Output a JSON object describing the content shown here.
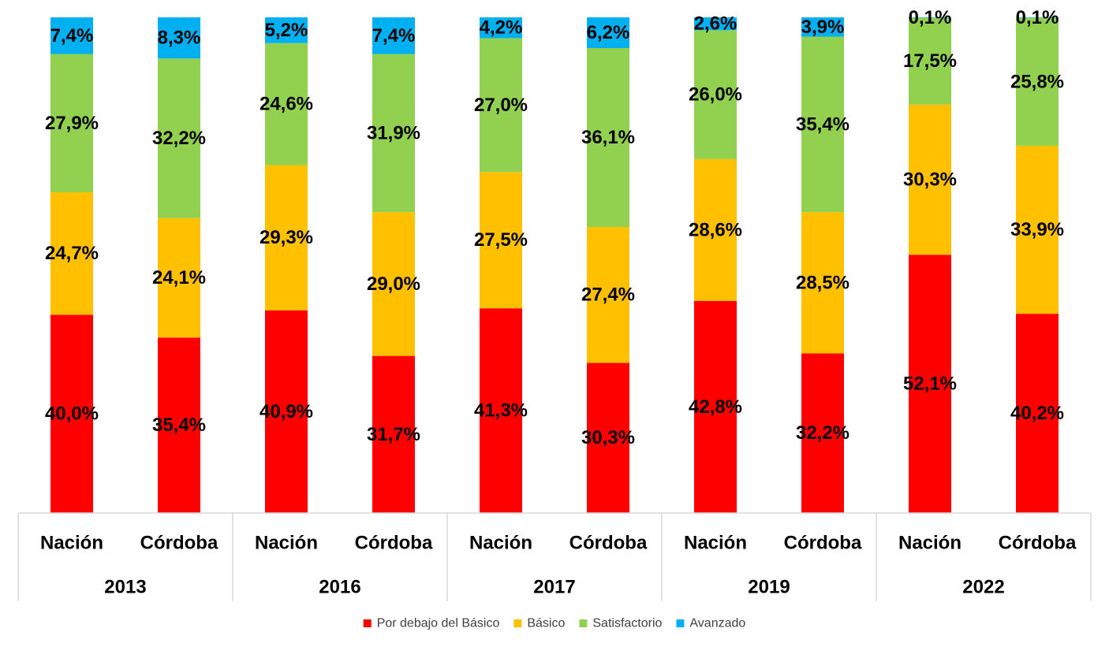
{
  "chart_data": {
    "type": "bar",
    "stacked": true,
    "percent_stacked": true,
    "groups": [
      {
        "year": "2013",
        "categories": [
          "Nación",
          "Córdoba"
        ]
      },
      {
        "year": "2016",
        "categories": [
          "Nación",
          "Córdoba"
        ]
      },
      {
        "year": "2017",
        "categories": [
          "Nación",
          "Córdoba"
        ]
      },
      {
        "year": "2019",
        "categories": [
          "Nación",
          "Córdoba"
        ]
      },
      {
        "year": "2022",
        "categories": [
          "Nación",
          "Córdoba"
        ]
      }
    ],
    "series": [
      {
        "name": "Por debajo del Básico",
        "color": "#ff0000",
        "values": [
          40.0,
          35.4,
          40.9,
          31.7,
          41.3,
          30.3,
          42.8,
          32.2,
          52.1,
          40.2
        ],
        "labels": [
          "40,0%",
          "35,4%",
          "40,9%",
          "31,7%",
          "41,3%",
          "30,3%",
          "42,8%",
          "32,2%",
          "52,1%",
          "40,2%"
        ]
      },
      {
        "name": "Básico",
        "color": "#ffc000",
        "values": [
          24.7,
          24.1,
          29.3,
          29.0,
          27.5,
          27.4,
          28.6,
          28.5,
          30.3,
          33.9
        ],
        "labels": [
          "24,7%",
          "24,1%",
          "29,3%",
          "29,0%",
          "27,5%",
          "27,4%",
          "28,6%",
          "28,5%",
          "30,3%",
          "33,9%"
        ]
      },
      {
        "name": "Satisfactorio",
        "color": "#92d050",
        "values": [
          27.9,
          32.2,
          24.6,
          31.9,
          27.0,
          36.1,
          26.0,
          35.4,
          17.5,
          25.8
        ],
        "labels": [
          "27,9%",
          "32,2%",
          "24,6%",
          "31,9%",
          "27,0%",
          "36,1%",
          "26,0%",
          "35,4%",
          "17,5%",
          "25,8%"
        ]
      },
      {
        "name": "Avanzado",
        "color": "#00b0f0",
        "values": [
          7.4,
          8.3,
          5.2,
          7.4,
          4.2,
          6.2,
          2.6,
          3.9,
          0.1,
          0.1
        ],
        "labels": [
          "7,4%",
          "8,3%",
          "5,2%",
          "7,4%",
          "4,2%",
          "6,2%",
          "2,6%",
          "3,9%",
          "0,1%",
          "0,1%"
        ]
      }
    ],
    "ylim": [
      0,
      100
    ],
    "grid": false,
    "legend_position": "bottom"
  }
}
